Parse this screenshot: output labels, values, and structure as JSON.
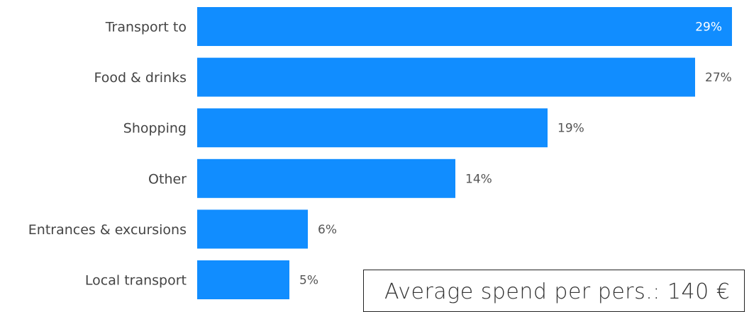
{
  "chart_data": {
    "type": "bar",
    "orientation": "horizontal",
    "categories": [
      "Transport to",
      "Food & drinks",
      "Shopping",
      "Other",
      "Entrances & excursions",
      "Local transport"
    ],
    "values": [
      29,
      27,
      19,
      14,
      6,
      5
    ],
    "value_labels": [
      "29%",
      "27%",
      "19%",
      "14%",
      "6%",
      "5%"
    ],
    "unit": "%",
    "xlim": [
      0,
      29
    ],
    "grid": false,
    "legend": "none",
    "bar_color": "#118dff",
    "annotation": "Average spend per pers.: 140 €"
  }
}
